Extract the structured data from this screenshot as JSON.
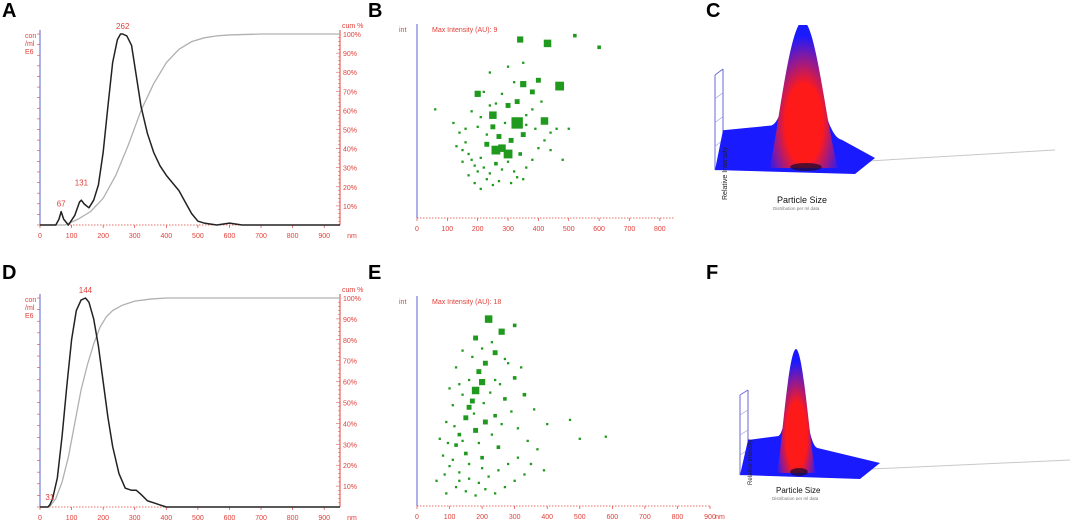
{
  "panels": {
    "A": "A",
    "B": "B",
    "C": "C",
    "D": "D",
    "E": "E",
    "F": "F"
  },
  "colors": {
    "axis_red": "#e0403a",
    "axis_blue": "#5b63d6",
    "dist_curve": "#222222",
    "cum_curve": "#b0b0b0",
    "scatter": "#1f9a1f",
    "surface_red": "#ff1a1a",
    "surface_blue": "#1a1aff"
  },
  "dist_axis": {
    "y_label_lines": [
      "con",
      "/ml",
      "E6"
    ],
    "cum_label": "cum %",
    "x_unit": "nm",
    "x_ticks": [
      "0",
      "100",
      "200",
      "300",
      "400",
      "500",
      "600",
      "700",
      "800",
      "900"
    ],
    "cum_ticks": [
      "10%",
      "20%",
      "30%",
      "40%",
      "50%",
      "60%",
      "70%",
      "80%",
      "90%",
      "100%"
    ]
  },
  "scatter_axis": {
    "y_label": "int",
    "x_unit": "nm"
  },
  "surface_labels": {
    "y_label": "Relative Intensity",
    "x_label": "Particle Size",
    "x_sublabel": "Distribution per ml data"
  },
  "chart_data": [
    {
      "panel": "A",
      "type": "line",
      "xlabel": "nm",
      "ylabel": "con /ml E6",
      "y2label": "cum %",
      "xlim": [
        0,
        950
      ],
      "ylim": [
        0,
        1
      ],
      "y2lim": [
        0,
        100
      ],
      "peak_labels": [
        {
          "x": 67,
          "y": 0.07,
          "text": "67"
        },
        {
          "x": 131,
          "y": 0.18,
          "text": "131"
        },
        {
          "x": 262,
          "y": 1.0,
          "text": "262"
        }
      ],
      "series": [
        {
          "name": "concentration",
          "x": [
            0,
            50,
            60,
            67,
            75,
            90,
            110,
            125,
            131,
            140,
            155,
            170,
            185,
            200,
            215,
            230,
            245,
            255,
            262,
            275,
            290,
            305,
            320,
            340,
            360,
            380,
            400,
            420,
            440,
            460,
            480,
            500,
            520,
            560,
            600,
            640,
            700,
            800,
            950
          ],
          "y": [
            0,
            0,
            0.03,
            0.07,
            0.03,
            0.0,
            0.05,
            0.12,
            0.13,
            0.11,
            0.09,
            0.13,
            0.21,
            0.38,
            0.62,
            0.85,
            0.97,
            1.0,
            1.0,
            0.99,
            0.94,
            0.78,
            0.62,
            0.48,
            0.38,
            0.31,
            0.26,
            0.22,
            0.18,
            0.12,
            0.06,
            0.02,
            0.01,
            0.0,
            0.01,
            0.0,
            0,
            0,
            0
          ]
        },
        {
          "name": "cumulative %",
          "x": [
            0,
            80,
            120,
            160,
            200,
            240,
            280,
            320,
            360,
            400,
            440,
            480,
            520,
            560,
            600,
            700,
            800,
            950
          ],
          "y": [
            0,
            0,
            3,
            7,
            14,
            26,
            42,
            60,
            74,
            85,
            92,
            96,
            98,
            99,
            99.5,
            100,
            100,
            100
          ]
        }
      ]
    },
    {
      "panel": "B",
      "type": "scatter",
      "title": "Max Intensity (AU): 9",
      "xlabel": "nm",
      "ylabel": "int",
      "xlim": [
        0,
        850
      ],
      "ylim": [
        0,
        10
      ],
      "x_ticks": [
        "0",
        "100",
        "200",
        "300",
        "400",
        "500",
        "600",
        "700",
        "800"
      ],
      "points": [
        [
          340,
          9.2,
          4
        ],
        [
          430,
          9.0,
          5
        ],
        [
          600,
          8.8,
          2
        ],
        [
          520,
          9.4,
          2
        ],
        [
          470,
          6.8,
          6
        ],
        [
          400,
          7.1,
          3
        ],
        [
          380,
          6.5,
          3
        ],
        [
          350,
          6.9,
          4
        ],
        [
          330,
          6.0,
          3
        ],
        [
          300,
          5.8,
          3
        ],
        [
          250,
          5.3,
          5
        ],
        [
          330,
          4.9,
          8
        ],
        [
          420,
          5.0,
          5
        ],
        [
          200,
          6.4,
          4
        ],
        [
          250,
          4.7,
          3
        ],
        [
          280,
          3.6,
          5
        ],
        [
          260,
          3.5,
          6
        ],
        [
          300,
          3.3,
          6
        ],
        [
          230,
          3.8,
          3
        ],
        [
          310,
          4.0,
          3
        ],
        [
          350,
          4.3,
          3
        ],
        [
          270,
          4.2,
          3
        ],
        [
          60,
          5.6,
          1
        ],
        [
          120,
          4.9,
          1
        ],
        [
          140,
          4.4,
          1
        ],
        [
          160,
          3.9,
          1
        ],
        [
          170,
          3.3,
          1
        ],
        [
          180,
          3.0,
          1
        ],
        [
          190,
          2.7,
          1
        ],
        [
          200,
          2.4,
          1
        ],
        [
          150,
          2.9,
          1
        ],
        [
          210,
          3.1,
          1
        ],
        [
          220,
          2.6,
          1
        ],
        [
          240,
          2.3,
          1
        ],
        [
          260,
          2.8,
          2
        ],
        [
          280,
          2.5,
          1
        ],
        [
          300,
          2.9,
          1
        ],
        [
          320,
          2.4,
          1
        ],
        [
          340,
          3.3,
          2
        ],
        [
          360,
          2.6,
          1
        ],
        [
          380,
          3.0,
          1
        ],
        [
          400,
          3.6,
          1
        ],
        [
          420,
          4.0,
          1
        ],
        [
          440,
          4.4,
          1
        ],
        [
          460,
          4.6,
          1
        ],
        [
          180,
          5.5,
          1
        ],
        [
          220,
          6.5,
          1
        ],
        [
          240,
          7.5,
          1
        ],
        [
          300,
          7.8,
          1
        ],
        [
          320,
          7.0,
          1
        ],
        [
          350,
          8.0,
          1
        ],
        [
          380,
          5.6,
          1
        ],
        [
          410,
          6.0,
          1
        ],
        [
          280,
          6.4,
          1
        ],
        [
          260,
          5.9,
          1
        ],
        [
          200,
          4.7,
          1
        ],
        [
          230,
          4.3,
          1
        ],
        [
          150,
          3.5,
          1
        ],
        [
          170,
          2.2,
          1
        ],
        [
          190,
          1.8,
          1
        ],
        [
          210,
          1.5,
          1
        ],
        [
          230,
          2.0,
          1
        ],
        [
          250,
          1.7,
          1
        ],
        [
          270,
          1.9,
          1
        ],
        [
          310,
          1.8,
          1
        ],
        [
          330,
          2.1,
          1
        ],
        [
          350,
          2.0,
          1
        ],
        [
          130,
          3.7,
          1
        ],
        [
          160,
          4.6,
          1
        ],
        [
          360,
          4.8,
          1
        ],
        [
          440,
          3.5,
          1
        ],
        [
          480,
          3.0,
          1
        ],
        [
          500,
          4.6,
          1
        ],
        [
          360,
          5.3,
          1
        ],
        [
          390,
          4.6,
          1
        ],
        [
          290,
          4.9,
          1
        ],
        [
          240,
          5.8,
          1
        ],
        [
          210,
          5.2,
          1
        ]
      ]
    },
    {
      "panel": "C",
      "type": "surface",
      "xlabel": "Particle Size",
      "ylabel": "Relative Intensity",
      "peak_position": 0.55,
      "peak_width": 0.22,
      "peak_height": 1.0
    },
    {
      "panel": "D",
      "type": "line",
      "xlabel": "nm",
      "ylabel": "con /ml E6",
      "y2label": "cum %",
      "xlim": [
        0,
        950
      ],
      "ylim": [
        0,
        1
      ],
      "y2lim": [
        0,
        100
      ],
      "peak_labels": [
        {
          "x": 31,
          "y": 0.01,
          "text": "31"
        },
        {
          "x": 144,
          "y": 1.0,
          "text": "144"
        }
      ],
      "series": [
        {
          "name": "concentration",
          "x": [
            0,
            25,
            31,
            40,
            55,
            70,
            85,
            100,
            115,
            130,
            144,
            155,
            170,
            185,
            200,
            215,
            230,
            250,
            270,
            290,
            305,
            320,
            340,
            360,
            380,
            400,
            440,
            500,
            600,
            700,
            800,
            950
          ],
          "y": [
            0,
            0,
            0.01,
            0.04,
            0.14,
            0.34,
            0.58,
            0.8,
            0.94,
            0.99,
            1.0,
            0.98,
            0.9,
            0.77,
            0.6,
            0.43,
            0.29,
            0.16,
            0.09,
            0.08,
            0.08,
            0.06,
            0.03,
            0.02,
            0.01,
            0.0,
            0,
            0,
            0,
            0,
            0,
            0
          ]
        },
        {
          "name": "cumulative %",
          "x": [
            0,
            30,
            50,
            70,
            90,
            110,
            130,
            150,
            170,
            190,
            210,
            230,
            260,
            300,
            350,
            400,
            500,
            600,
            950
          ],
          "y": [
            0,
            0,
            4,
            12,
            24,
            40,
            56,
            68,
            78,
            86,
            91,
            94,
            96.5,
            98.5,
            99.5,
            100,
            100,
            100,
            100
          ]
        }
      ]
    },
    {
      "panel": "E",
      "type": "scatter",
      "title": "Max Intensity (AU): 18",
      "xlabel": "nm",
      "ylabel": "int",
      "xlim": [
        0,
        900
      ],
      "ylim": [
        0,
        10
      ],
      "x_ticks": [
        "0",
        "100",
        "200",
        "300",
        "400",
        "500",
        "600",
        "700",
        "800",
        "900"
      ],
      "points": [
        [
          220,
          8.9,
          5
        ],
        [
          260,
          8.3,
          4
        ],
        [
          300,
          8.6,
          2
        ],
        [
          180,
          8.0,
          3
        ],
        [
          240,
          7.3,
          3
        ],
        [
          210,
          6.8,
          3
        ],
        [
          190,
          6.4,
          3
        ],
        [
          200,
          5.9,
          4
        ],
        [
          180,
          5.5,
          5
        ],
        [
          170,
          5.0,
          3
        ],
        [
          160,
          4.7,
          3
        ],
        [
          150,
          4.2,
          3
        ],
        [
          210,
          4.0,
          3
        ],
        [
          180,
          3.6,
          3
        ],
        [
          240,
          4.3,
          2
        ],
        [
          270,
          5.1,
          2
        ],
        [
          300,
          6.1,
          2
        ],
        [
          330,
          5.3,
          2
        ],
        [
          360,
          4.6,
          1
        ],
        [
          400,
          3.9,
          1
        ],
        [
          470,
          4.1,
          1
        ],
        [
          500,
          3.2,
          1
        ],
        [
          580,
          3.3,
          1
        ],
        [
          130,
          3.4,
          2
        ],
        [
          120,
          2.9,
          2
        ],
        [
          150,
          2.5,
          2
        ],
        [
          200,
          2.3,
          2
        ],
        [
          250,
          2.8,
          2
        ],
        [
          100,
          5.6,
          1
        ],
        [
          120,
          6.6,
          1
        ],
        [
          140,
          7.4,
          1
        ],
        [
          230,
          7.8,
          1
        ],
        [
          270,
          7.0,
          1
        ],
        [
          320,
          6.6,
          1
        ],
        [
          90,
          4.0,
          1
        ],
        [
          110,
          4.8,
          1
        ],
        [
          130,
          5.8,
          1
        ],
        [
          240,
          6.0,
          1
        ],
        [
          280,
          6.8,
          1
        ],
        [
          290,
          4.5,
          1
        ],
        [
          310,
          3.7,
          1
        ],
        [
          340,
          3.1,
          1
        ],
        [
          370,
          2.7,
          1
        ],
        [
          80,
          2.4,
          1
        ],
        [
          100,
          1.9,
          1
        ],
        [
          130,
          1.6,
          1
        ],
        [
          160,
          1.3,
          1
        ],
        [
          190,
          1.1,
          1
        ],
        [
          220,
          1.4,
          1
        ],
        [
          250,
          1.7,
          1
        ],
        [
          280,
          2.0,
          1
        ],
        [
          310,
          2.3,
          1
        ],
        [
          60,
          1.2,
          1
        ],
        [
          70,
          3.2,
          1
        ],
        [
          90,
          0.6,
          1
        ],
        [
          120,
          0.9,
          1
        ],
        [
          150,
          0.7,
          1
        ],
        [
          180,
          0.5,
          1
        ],
        [
          210,
          0.8,
          1
        ],
        [
          240,
          0.6,
          1
        ],
        [
          270,
          0.9,
          1
        ],
        [
          300,
          1.2,
          1
        ],
        [
          330,
          1.5,
          1
        ],
        [
          160,
          6.0,
          1
        ],
        [
          170,
          7.1,
          1
        ],
        [
          200,
          7.5,
          1
        ],
        [
          190,
          3.0,
          1
        ],
        [
          230,
          3.4,
          1
        ],
        [
          260,
          3.9,
          1
        ],
        [
          140,
          3.1,
          1
        ],
        [
          110,
          2.2,
          1
        ],
        [
          200,
          1.8,
          1
        ],
        [
          160,
          2.0,
          1
        ],
        [
          130,
          1.2,
          1
        ],
        [
          175,
          4.4,
          1
        ],
        [
          205,
          4.9,
          1
        ],
        [
          225,
          5.4,
          1
        ],
        [
          255,
          5.8,
          1
        ],
        [
          140,
          5.3,
          1
        ],
        [
          115,
          3.8,
          1
        ],
        [
          95,
          3.0,
          1
        ],
        [
          85,
          1.5,
          1
        ],
        [
          350,
          2.0,
          1
        ],
        [
          390,
          1.7,
          1
        ]
      ]
    },
    {
      "panel": "F",
      "type": "surface",
      "xlabel": "Particle Size",
      "ylabel": "Relative Intensity",
      "peak_position": 0.4,
      "peak_width": 0.14,
      "peak_height": 1.0
    }
  ]
}
